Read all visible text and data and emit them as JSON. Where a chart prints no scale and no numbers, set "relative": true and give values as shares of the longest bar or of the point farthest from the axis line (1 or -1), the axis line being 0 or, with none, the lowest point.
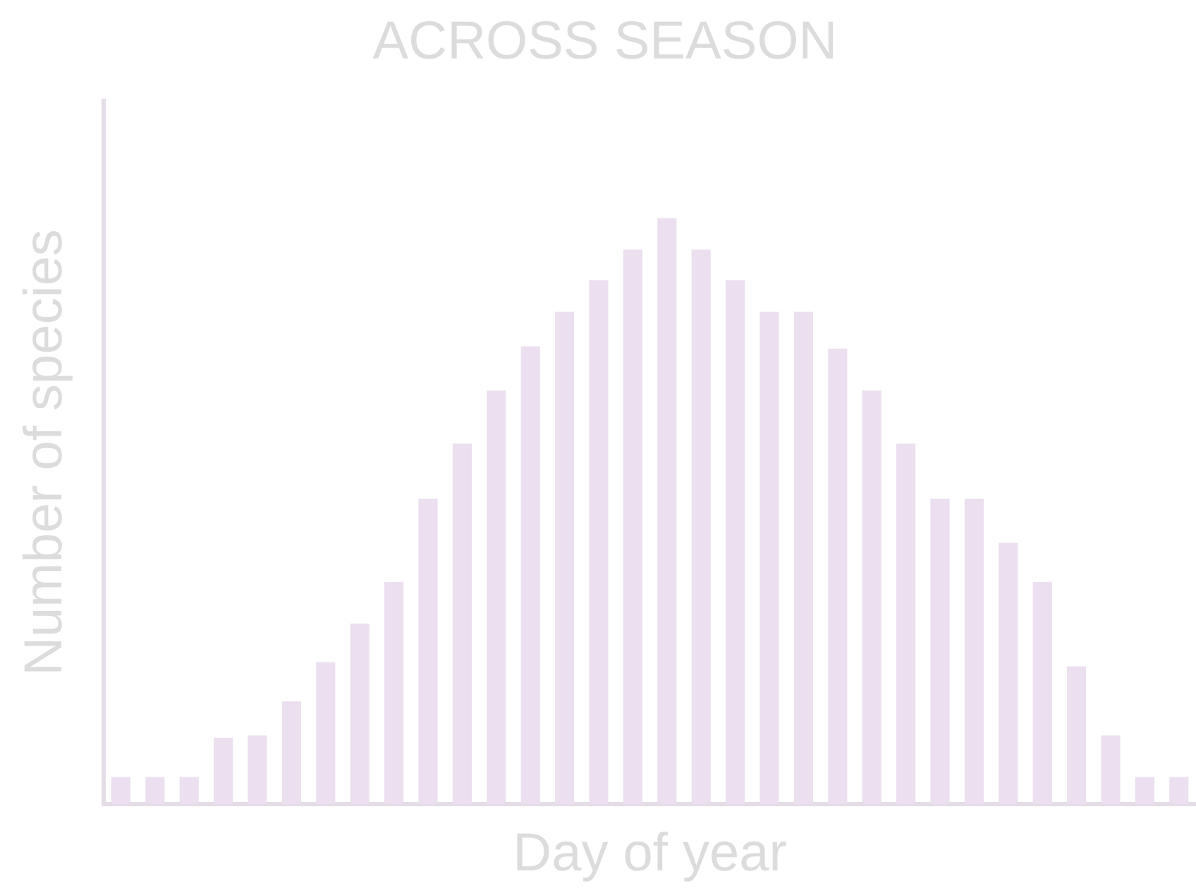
{
  "chart_data": {
    "type": "bar",
    "title": "ACROSS SEASON",
    "xlabel": "Day of year",
    "ylabel": "Number of species",
    "relative": true,
    "color": "#ecdff0",
    "categories": [
      null,
      null,
      null,
      null,
      null,
      null,
      null,
      null,
      null,
      null,
      null,
      null,
      null,
      null,
      null,
      null,
      null,
      null,
      null,
      null,
      null,
      null,
      null,
      null,
      null,
      null,
      null,
      null,
      null,
      null,
      null,
      null
    ],
    "values": [
      0.046,
      0.046,
      0.046,
      0.113,
      0.117,
      0.175,
      0.242,
      0.308,
      0.379,
      0.521,
      0.615,
      0.706,
      0.781,
      0.84,
      0.894,
      0.946,
      1,
      0.946,
      0.894,
      0.84,
      0.84,
      0.777,
      0.706,
      0.615,
      0.521,
      0.521,
      0.446,
      0.379,
      0.235,
      0.117,
      0.046,
      0.046
    ],
    "grid": false,
    "legend": false
  }
}
